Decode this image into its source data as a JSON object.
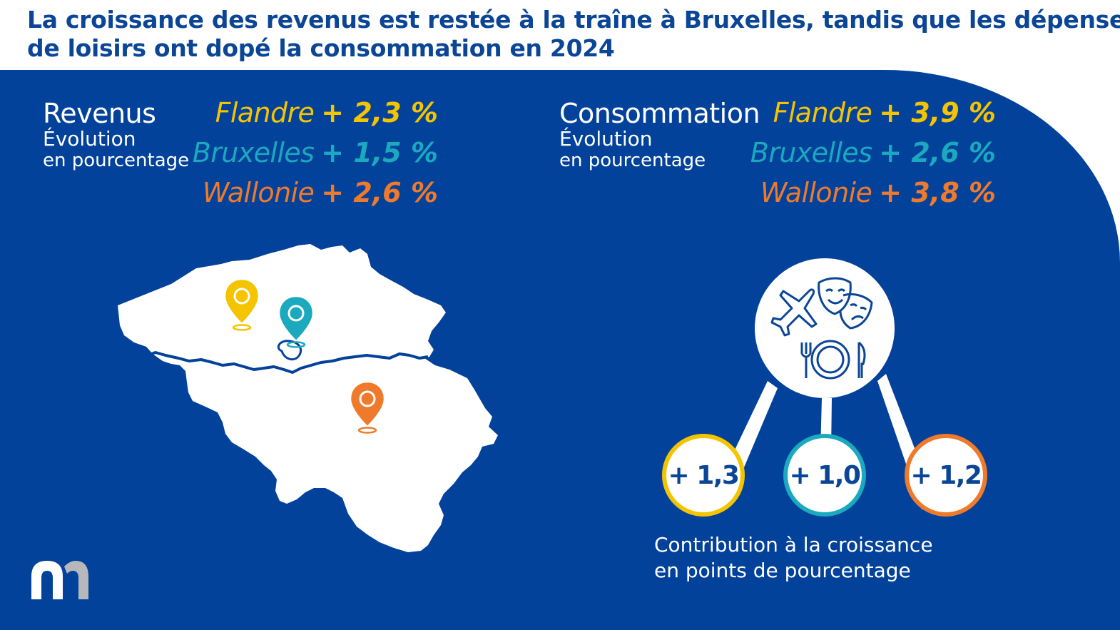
{
  "headline": {
    "line1": "La croissance des revenus est restée à la traîne à Bruxelles, tandis que les dépenses",
    "line2": "de loisirs ont dopé la consommation en 2024"
  },
  "revenus": {
    "title": "Revenus",
    "subtitle1": "Évolution",
    "subtitle2": "en pourcentage",
    "rows": [
      {
        "region": "Flandre",
        "value": "+ 2,3 %",
        "color": "#f5c400"
      },
      {
        "region": "Bruxelles",
        "value": "+ 1,5 %",
        "color": "#1aa9be"
      },
      {
        "region": "Wallonie",
        "value": "+ 2,6 %",
        "color": "#ef7a2b"
      }
    ]
  },
  "consommation": {
    "title": "Consommation",
    "subtitle1": "Évolution",
    "subtitle2": "en pourcentage",
    "rows": [
      {
        "region": "Flandre",
        "value": "+ 3,9 %",
        "color": "#f5c400"
      },
      {
        "region": "Bruxelles",
        "value": "+ 2,6 %",
        "color": "#1aa9be"
      },
      {
        "region": "Wallonie",
        "value": "+ 3,8 %",
        "color": "#ef7a2b"
      }
    ]
  },
  "contributions": [
    {
      "value": "+ 1,3",
      "color": "#f5c400"
    },
    {
      "value": "+ 1,0",
      "color": "#1aa9be"
    },
    {
      "value": "+ 1,2",
      "color": "#ef7a2b"
    }
  ],
  "caption": {
    "line1": "Contribution à la croissance",
    "line2": "en points de pourcentage"
  },
  "icons": {
    "leisure": [
      "airplane-icon",
      "theater-masks-icon",
      "plate-cutlery-icon"
    ],
    "pins": [
      "map-pin-flandre-icon",
      "map-pin-bruxelles-icon",
      "map-pin-wallonie-icon"
    ],
    "logo": "nbb-logo-icon"
  },
  "colors": {
    "panel": "#03429a",
    "headline": "#0b4596",
    "flandre": "#f5c400",
    "bruxelles": "#1aa9be",
    "wallonie": "#ef7a2b"
  }
}
